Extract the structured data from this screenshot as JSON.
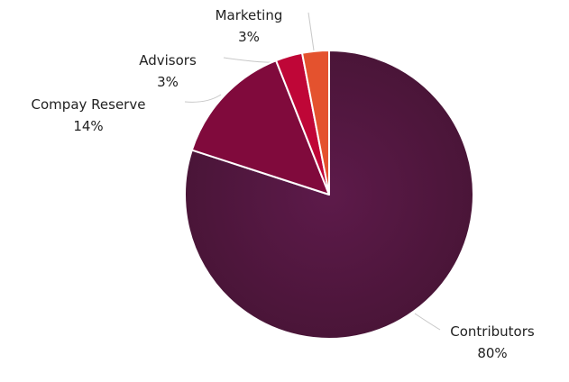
{
  "chart_data": {
    "type": "pie",
    "slices": [
      {
        "label": "Contributors",
        "value": 80,
        "display": "80%",
        "color": "#561a45"
      },
      {
        "label": "Compay Reserve",
        "value": 14,
        "display": "14%",
        "color": "#800a3c"
      },
      {
        "label": "Advisors",
        "value": 3,
        "display": "3%",
        "color": "#bf0637"
      },
      {
        "label": "Marketing",
        "value": 3,
        "display": "3%",
        "color": "#e4522e"
      }
    ],
    "start_angle_deg": 0,
    "direction": "clockwise"
  }
}
